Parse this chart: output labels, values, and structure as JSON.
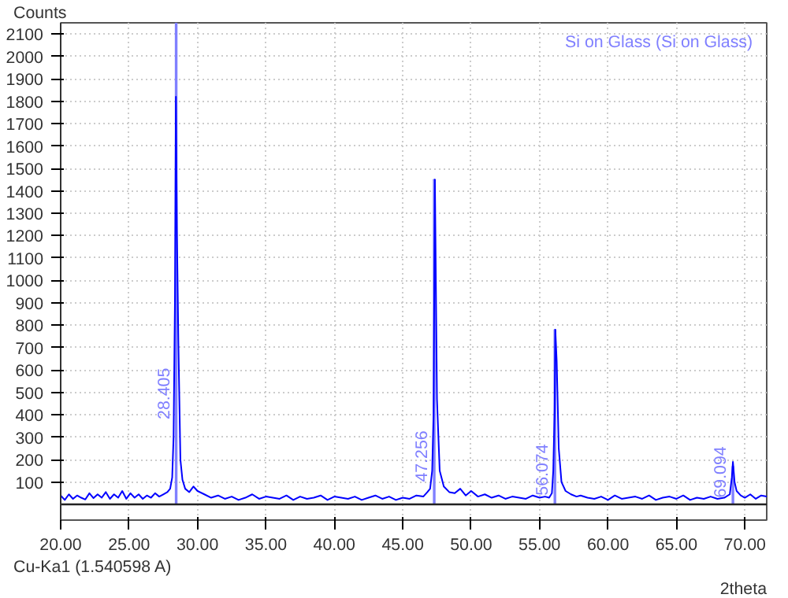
{
  "chart_data": {
    "type": "line",
    "xlabel": "2theta",
    "ylabel": "Counts",
    "annotations": [
      "Cu-Ka1 (1.540598 A)",
      {
        "text": "28.405",
        "x": 28.405,
        "y": 380
      },
      {
        "text": "47.256",
        "x": 47.256,
        "y": 100
      },
      {
        "text": "56.074",
        "x": 56.074,
        "y": 40
      },
      {
        "text": "69.094",
        "x": 69.094,
        "y": 30
      }
    ],
    "xlim": [
      20,
      71.6
    ],
    "ylim": [
      -70,
      2150
    ],
    "xticks": [
      {
        "value": 20,
        "label": "20.00"
      },
      {
        "value": 25,
        "label": "25.00"
      },
      {
        "value": 30,
        "label": "30.00"
      },
      {
        "value": 35,
        "label": "35.00"
      },
      {
        "value": 40,
        "label": "40.00"
      },
      {
        "value": 45,
        "label": "45.00"
      },
      {
        "value": 50,
        "label": "50.00"
      },
      {
        "value": 55,
        "label": "55.00"
      },
      {
        "value": 60,
        "label": "60.00"
      },
      {
        "value": 65,
        "label": "65.00"
      },
      {
        "value": 70,
        "label": "70.00"
      }
    ],
    "yticks": [
      100,
      200,
      300,
      400,
      500,
      600,
      700,
      800,
      900,
      1000,
      1100,
      1200,
      1300,
      1400,
      1500,
      1600,
      1700,
      1800,
      1900,
      2000,
      2100
    ],
    "grid": true,
    "legend": "top right",
    "marker": "none",
    "line_style": "solid",
    "series": [
      {
        "color": "#0000ff",
        "x": [
          20,
          20.3,
          20.6,
          20.9,
          21.2,
          21.5,
          21.8,
          22.1,
          22.4,
          22.7,
          23.0,
          23.3,
          23.6,
          23.9,
          24.2,
          24.5,
          24.8,
          25.1,
          25.4,
          25.7,
          26.0,
          26.3,
          26.6,
          26.9,
          27.2,
          27.5,
          27.8,
          28.0,
          28.15,
          28.25,
          28.35,
          28.42,
          28.5,
          28.6,
          28.75,
          28.9,
          29.1,
          29.4,
          29.7,
          30.0,
          30.5,
          31.0,
          31.5,
          32.0,
          32.5,
          33.0,
          33.5,
          34.0,
          34.5,
          35.0,
          35.5,
          36.0,
          36.5,
          37.0,
          37.5,
          38.0,
          38.5,
          39.0,
          39.5,
          40.0,
          40.5,
          41.0,
          41.5,
          42.0,
          42.5,
          43.0,
          43.5,
          44.0,
          44.5,
          45.0,
          45.5,
          46.0,
          46.5,
          46.8,
          47.0,
          47.15,
          47.25,
          47.35,
          47.5,
          47.7,
          48.0,
          48.4,
          48.8,
          49.2,
          49.6,
          50.0,
          50.5,
          51.0,
          51.5,
          52.0,
          52.5,
          53.0,
          53.5,
          54.0,
          54.5,
          55.0,
          55.4,
          55.7,
          55.9,
          56.0,
          56.1,
          56.15,
          56.25,
          56.4,
          56.6,
          56.9,
          57.3,
          57.7,
          58.0,
          58.5,
          59.0,
          59.5,
          60.0,
          60.5,
          61.0,
          61.5,
          62.0,
          62.5,
          63.0,
          63.5,
          64.0,
          64.5,
          65.0,
          65.5,
          66.0,
          66.5,
          67.0,
          67.5,
          68.0,
          68.5,
          68.9,
          69.05,
          69.13,
          69.25,
          69.4,
          69.7,
          70.0,
          70.4,
          70.8,
          71.2,
          71.6
        ],
        "values": [
          40,
          20,
          45,
          25,
          40,
          30,
          22,
          50,
          28,
          45,
          30,
          55,
          25,
          45,
          30,
          60,
          25,
          50,
          30,
          45,
          25,
          40,
          30,
          50,
          35,
          45,
          55,
          70,
          120,
          300,
          900,
          1820,
          1200,
          730,
          200,
          110,
          70,
          55,
          80,
          60,
          45,
          30,
          40,
          25,
          35,
          20,
          30,
          45,
          25,
          35,
          30,
          25,
          40,
          20,
          35,
          25,
          30,
          40,
          20,
          35,
          30,
          25,
          35,
          20,
          30,
          40,
          25,
          35,
          20,
          30,
          25,
          40,
          35,
          55,
          70,
          150,
          400,
          1450,
          470,
          150,
          80,
          55,
          50,
          70,
          40,
          60,
          35,
          45,
          30,
          40,
          25,
          35,
          30,
          25,
          40,
          30,
          35,
          30,
          50,
          150,
          420,
          780,
          640,
          250,
          100,
          60,
          45,
          35,
          40,
          30,
          25,
          35,
          20,
          40,
          25,
          30,
          35,
          25,
          40,
          20,
          30,
          35,
          25,
          40,
          20,
          30,
          25,
          35,
          25,
          30,
          45,
          120,
          190,
          100,
          60,
          40,
          30,
          45,
          25,
          40,
          35
        ]
      },
      {
        "type": "bar",
        "name": "Si on Glass (Si on Glass)",
        "color": "#8080ff",
        "x": [
          28.44,
          47.3,
          56.12,
          69.13
        ],
        "values": [
          2150,
          1450,
          780,
          170
        ]
      }
    ]
  }
}
